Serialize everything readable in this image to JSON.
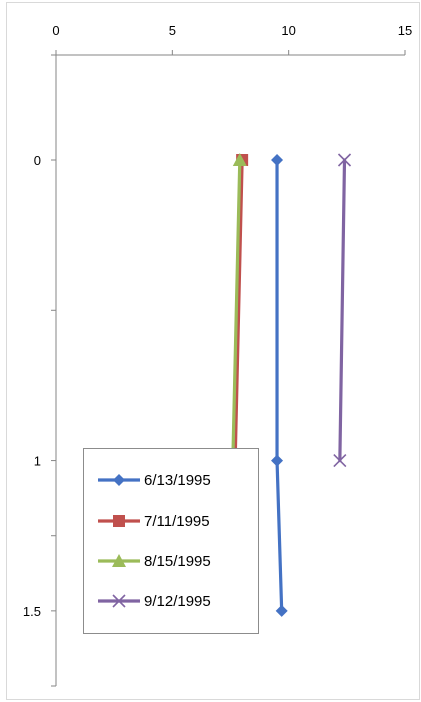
{
  "chart_data": {
    "type": "line",
    "title": "",
    "xlabel": "",
    "ylabel": "",
    "x_axis_position": "top",
    "y_axis_reversed": true,
    "xlim": [
      0,
      15
    ],
    "ylim": [
      0,
      1.75
    ],
    "x_ticks": [
      "0",
      "5",
      "10",
      "15"
    ],
    "x_tick_values": [
      0,
      5,
      10,
      15
    ],
    "y_tick_values": [
      0,
      1,
      1.5
    ],
    "y_ticks": [
      "0",
      "1",
      "1.5"
    ],
    "y_minor_ticks": [
      0.5,
      1.25,
      1.75
    ],
    "grid": false,
    "legend_position": "bottom-left",
    "series": [
      {
        "name": "6/13/1995",
        "color": "#4472C4",
        "marker": "diamond",
        "points": [
          [
            9.5,
            0
          ],
          [
            9.5,
            1
          ],
          [
            9.7,
            1.5
          ]
        ]
      },
      {
        "name": "7/11/1995",
        "color": "#C0504D",
        "marker": "square",
        "points": [
          [
            8.0,
            0
          ],
          [
            7.7,
            1
          ]
        ]
      },
      {
        "name": "8/15/1995",
        "color": "#9BBB59",
        "marker": "triangle",
        "points": [
          [
            7.9,
            0
          ],
          [
            7.6,
            1
          ]
        ]
      },
      {
        "name": "9/12/1995",
        "color": "#8064A2",
        "marker": "x",
        "points": [
          [
            12.4,
            0
          ],
          [
            12.2,
            1
          ]
        ]
      }
    ]
  }
}
